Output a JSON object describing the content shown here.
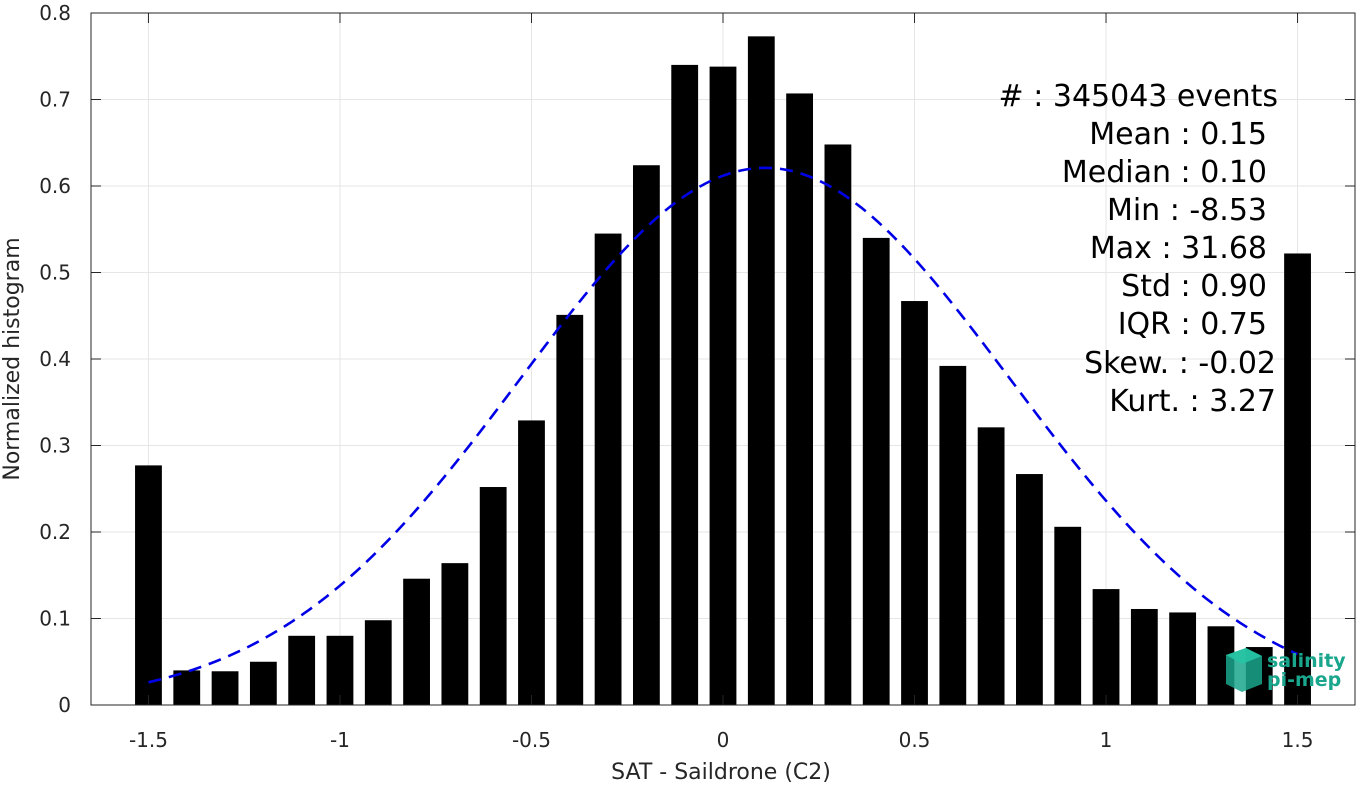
{
  "chart_data": {
    "type": "bar",
    "xlabel": "SAT - Saildrone (C2)",
    "ylabel": "Normalized histogram",
    "xlim": [
      -1.65,
      1.65
    ],
    "ylim": [
      0,
      0.8
    ],
    "xticks": [
      -1.5,
      -1,
      -0.5,
      0,
      0.5,
      1,
      1.5
    ],
    "xtick_labels": [
      "-1.5",
      "-1",
      "-0.5",
      "0",
      "0.5",
      "1",
      "1.5"
    ],
    "yticks": [
      0,
      0.1,
      0.2,
      0.3,
      0.4,
      0.5,
      0.6,
      0.7,
      0.8
    ],
    "ytick_labels": [
      "0",
      "0.1",
      "0.2",
      "0.3",
      "0.4",
      "0.5",
      "0.6",
      "0.7",
      "0.8"
    ],
    "grid": true,
    "bar_color": "#000000",
    "bars": {
      "x": [
        -1.5,
        -1.4,
        -1.3,
        -1.2,
        -1.1,
        -1.0,
        -0.9,
        -0.8,
        -0.7,
        -0.6,
        -0.5,
        -0.4,
        -0.3,
        -0.2,
        -0.1,
        0.0,
        0.1,
        0.2,
        0.3,
        0.4,
        0.5,
        0.6,
        0.7,
        0.8,
        0.9,
        1.0,
        1.1,
        1.2,
        1.3,
        1.4,
        1.5
      ],
      "values": [
        0.277,
        0.04,
        0.039,
        0.05,
        0.08,
        0.08,
        0.098,
        0.146,
        0.164,
        0.252,
        0.329,
        0.451,
        0.545,
        0.624,
        0.74,
        0.738,
        0.773,
        0.707,
        0.648,
        0.54,
        0.467,
        0.392,
        0.321,
        0.267,
        0.206,
        0.134,
        0.111,
        0.107,
        0.091,
        0.067,
        0.522
      ]
    },
    "fit_curve": {
      "style": "dashed",
      "color": "#0000e6",
      "mean": 0.11,
      "std": 0.64,
      "peak": 0.621,
      "x_range": [
        -1.5,
        1.5
      ]
    }
  },
  "stats": [
    {
      "label": "#  : 345043 events"
    },
    {
      "label": "Mean : 0.15"
    },
    {
      "label": "Median : 0.10"
    },
    {
      "label": "Min : -8.53"
    },
    {
      "label": "Max : 31.68"
    },
    {
      "label": "Std : 0.90"
    },
    {
      "label": "IQR : 0.75"
    },
    {
      "label": "Skew. : -0.02"
    },
    {
      "label": "Kurt. : 3.27"
    }
  ],
  "logo": {
    "line1": "salinity",
    "line2": "pi-mep",
    "color": "#1aa68c"
  }
}
